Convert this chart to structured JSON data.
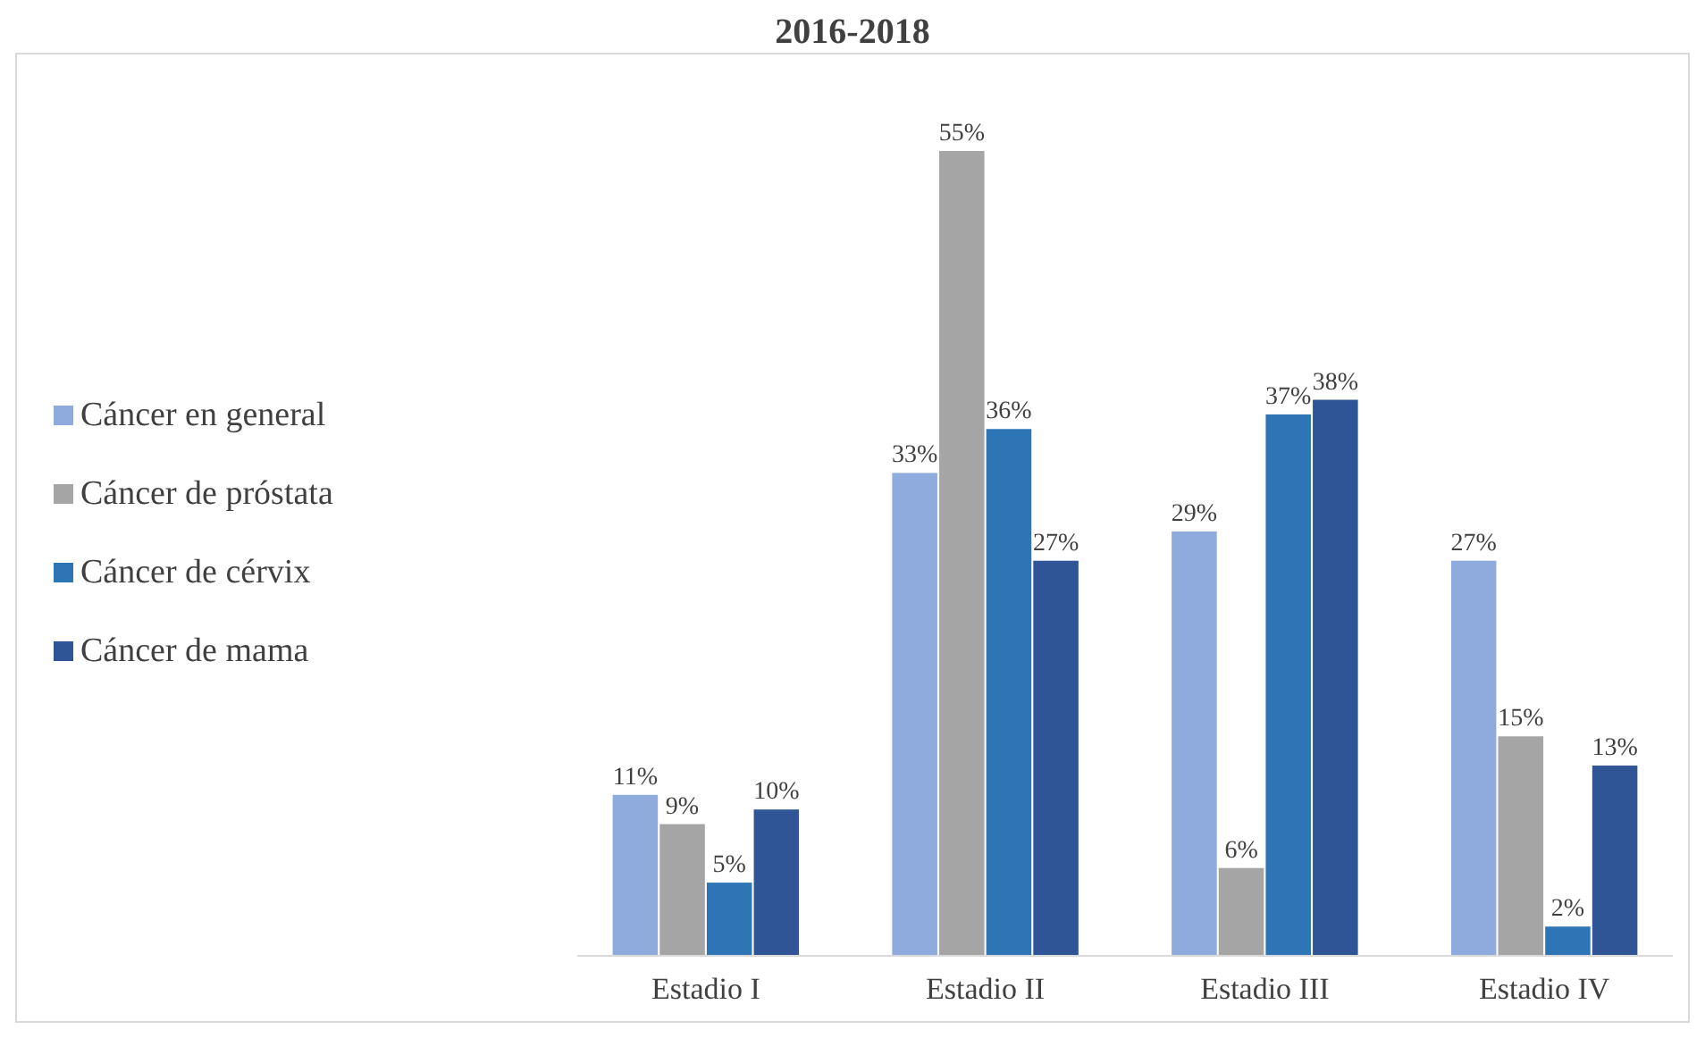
{
  "chart_data": {
    "type": "bar",
    "title": "2016-2018",
    "categories": [
      "Estadio I",
      "Estadio II",
      "Estadio III",
      "Estadio IV"
    ],
    "series": [
      {
        "name": "Cáncer en general",
        "color": "#8faadc",
        "values": [
          11,
          33,
          29,
          27
        ],
        "value_labels": [
          "11%",
          "33%",
          "29%",
          "27%"
        ]
      },
      {
        "name": "Cáncer de próstata",
        "color": "#a5a5a5",
        "values": [
          9,
          55,
          6,
          15
        ],
        "value_labels": [
          "9%",
          "55%",
          "6%",
          "15%"
        ]
      },
      {
        "name": "Cáncer de cérvix",
        "color": "#2e75b6",
        "values": [
          5,
          36,
          37,
          2
        ],
        "value_labels": [
          "5%",
          "36%",
          "37%",
          "2%"
        ]
      },
      {
        "name": "Cáncer de mama",
        "color": "#2f5597",
        "values": [
          10,
          27,
          38,
          13
        ],
        "value_labels": [
          "10%",
          "27%",
          "38%",
          "13%"
        ]
      }
    ],
    "legend": "left",
    "grid": false
  }
}
